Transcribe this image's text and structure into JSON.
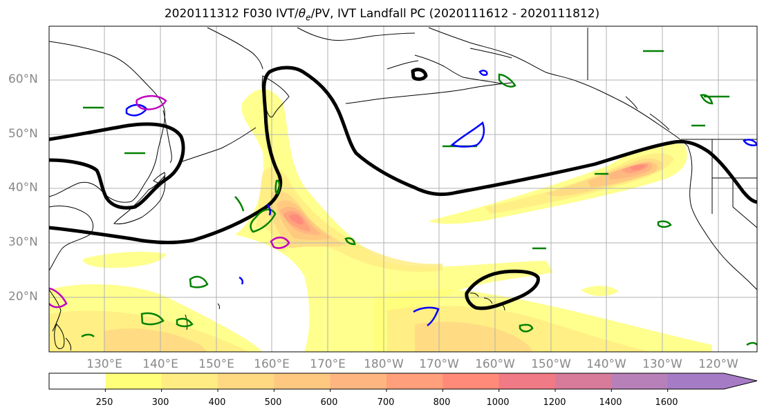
{
  "title_prefix": "2020111312 F030 IVT/",
  "title_theta": "θ",
  "title_sub": "e",
  "title_suffix": "/PV, IVT Landfall PC (2020111612 - 2020111812)",
  "lat_labels": [
    "60°N",
    "50°N",
    "40°N",
    "30°N",
    "20°N"
  ],
  "lon_labels": [
    "130°E",
    "140°E",
    "150°E",
    "160°E",
    "170°E",
    "180°W",
    "170°W",
    "160°W",
    "150°W",
    "140°W",
    "130°W",
    "120°W"
  ],
  "colorbar": {
    "ticks": [
      "250",
      "300",
      "400",
      "500",
      "600",
      "700",
      "800",
      "1000",
      "1200",
      "1400",
      "1600"
    ],
    "colors": [
      "#ffffff",
      "#ffff7a",
      "#ffec82",
      "#ffd882",
      "#ffc880",
      "#ffb57f",
      "#ff9f7c",
      "#ff8a7a",
      "#f07a85",
      "#d87a9a",
      "#b880b8",
      "#a67bc6"
    ]
  },
  "colors": {
    "land": "#000000",
    "theta_contour": "#000000",
    "pv_green": "#008000",
    "pv_blue": "#0000ff",
    "pv_magenta": "#c000c0",
    "grid": "#b0b0b0"
  }
}
